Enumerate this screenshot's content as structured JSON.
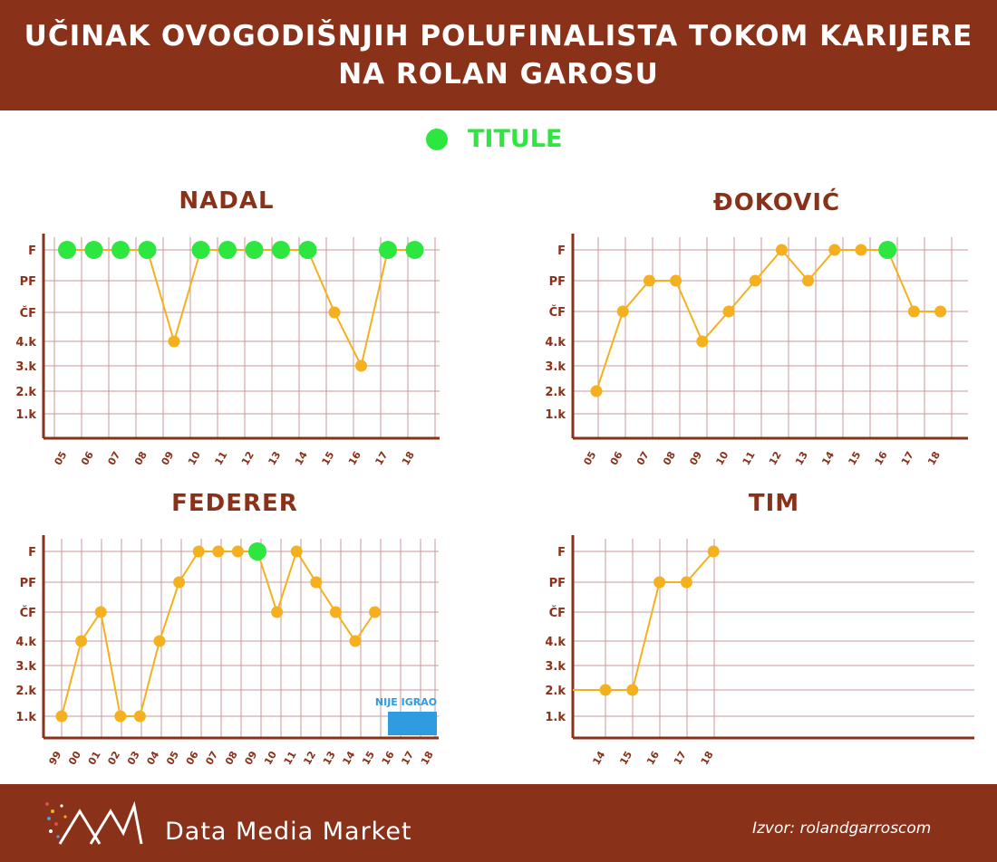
{
  "header": {
    "title_line1": "UČINAK OVOGODIŠNJIH POLUFINALISTA TOKOM KARIJERE",
    "title_line2": "NA ROLAN GAROSU"
  },
  "legend": {
    "label": "TITULE",
    "color": "#2ee640"
  },
  "colors": {
    "brand": "#8a3119",
    "line": "#f4b01e",
    "grid": "#c99a9a",
    "title_dot": "#2ee640",
    "not_played": "#2f9be0"
  },
  "footer": {
    "brand": "Data Media Market",
    "source": "Izvor: rolandgarroscom"
  },
  "y_levels": [
    "1.k",
    "2.k",
    "3.k",
    "4.k",
    "ČF",
    "PF",
    "F"
  ],
  "chart_data": [
    {
      "type": "line",
      "title": "NADAL",
      "x": [
        "05",
        "06",
        "07",
        "08",
        "09",
        "10",
        "11",
        "12",
        "13",
        "14",
        "15",
        "16",
        "17",
        "18"
      ],
      "values": [
        "F",
        "F",
        "F",
        "F",
        "4.k",
        "F",
        "F",
        "F",
        "F",
        "F",
        "ČF",
        "3.k",
        "F",
        "F"
      ],
      "titles_won": [
        "05",
        "06",
        "07",
        "08",
        "10",
        "11",
        "12",
        "13",
        "14",
        "17",
        "18"
      ]
    },
    {
      "type": "line",
      "title": "ĐOKOVIĆ",
      "x": [
        "05",
        "06",
        "07",
        "08",
        "09",
        "10",
        "11",
        "12",
        "13",
        "14",
        "15",
        "16",
        "17",
        "18"
      ],
      "values": [
        "2.k",
        "ČF",
        "PF",
        "PF",
        "4.k",
        "ČF",
        "PF",
        "F",
        "PF",
        "F",
        "F",
        "F",
        "ČF",
        "ČF"
      ],
      "titles_won": [
        "16"
      ]
    },
    {
      "type": "line",
      "title": "FEDERER",
      "x": [
        "99",
        "00",
        "01",
        "02",
        "03",
        "04",
        "05",
        "06",
        "07",
        "08",
        "09",
        "10",
        "11",
        "12",
        "13",
        "14",
        "15",
        "16",
        "17",
        "18"
      ],
      "values": [
        "1.k",
        "4.k",
        "ČF",
        "1.k",
        "1.k",
        "4.k",
        "PF",
        "F",
        "F",
        "F",
        "F",
        "ČF",
        "F",
        "PF",
        "ČF",
        "4.k",
        "ČF",
        null,
        null,
        null
      ],
      "titles_won": [
        "09"
      ],
      "annotation": "NIJE IGRAO"
    },
    {
      "type": "line",
      "title": "TIM",
      "x": [
        "14",
        "15",
        "16",
        "17",
        "18"
      ],
      "values": [
        "2.k",
        "2.k",
        "PF",
        "PF",
        "F"
      ],
      "titles_won": []
    }
  ]
}
